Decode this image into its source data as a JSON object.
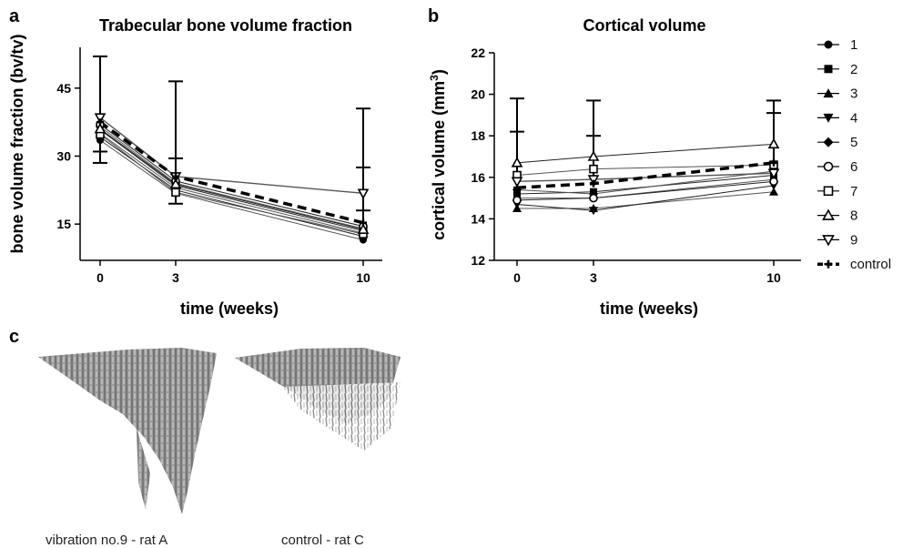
{
  "panels": {
    "a": "a",
    "b": "b",
    "c": "c"
  },
  "chart_data": [
    {
      "type": "line",
      "title": "Trabecular bone volume fraction",
      "xlabel": "time (weeks)",
      "ylabel": "bone volume fraction (bv/tv)",
      "x": [
        0,
        3,
        10
      ],
      "xticks": [
        "0",
        "3",
        "10"
      ],
      "yticks": [
        "15",
        "30",
        "45"
      ],
      "ylim": [
        7,
        54
      ],
      "series": [
        {
          "name": "1",
          "values": [
            33.5,
            21.8,
            11.5
          ]
        },
        {
          "name": "2",
          "values": [
            34.2,
            22.5,
            12.3
          ]
        },
        {
          "name": "3",
          "values": [
            35.0,
            23.0,
            13.0
          ]
        },
        {
          "name": "4",
          "values": [
            35.8,
            23.5,
            13.5
          ]
        },
        {
          "name": "5",
          "values": [
            36.5,
            24.0,
            14.0
          ]
        },
        {
          "name": "6",
          "values": [
            37.0,
            24.5,
            14.5
          ]
        },
        {
          "name": "7",
          "values": [
            34.8,
            22.0,
            12.8
          ]
        },
        {
          "name": "8",
          "values": [
            36.0,
            23.8,
            13.8
          ]
        },
        {
          "name": "9",
          "values": [
            38.5,
            25.5,
            21.8
          ]
        },
        {
          "name": "control",
          "values": [
            37.5,
            25.5,
            15.3
          ]
        }
      ],
      "error_tops": [
        [
          52,
          46.5,
          40.5
        ],
        [
          31,
          29.5,
          27.5
        ],
        [
          28.5,
          19.5,
          18
        ]
      ]
    },
    {
      "type": "line",
      "title": "Cortical volume",
      "xlabel": "time (weeks)",
      "ylabel": "cortical volume (mm",
      "ylabel_sup": "3",
      "ylabel_end": ")",
      "x": [
        0,
        3,
        10
      ],
      "xticks": [
        "0",
        "3",
        "10"
      ],
      "yticks": [
        "12",
        "14",
        "16",
        "18",
        "20",
        "22"
      ],
      "ylim": [
        12,
        22
      ],
      "series": [
        {
          "name": "1",
          "values": [
            15.0,
            15.0,
            15.9
          ]
        },
        {
          "name": "2",
          "values": [
            15.2,
            15.3,
            16.1
          ]
        },
        {
          "name": "3",
          "values": [
            14.5,
            14.5,
            15.3
          ]
        },
        {
          "name": "4",
          "values": [
            14.7,
            14.4,
            15.6
          ]
        },
        {
          "name": "5",
          "values": [
            15.4,
            15.2,
            16.3
          ]
        },
        {
          "name": "6",
          "values": [
            14.9,
            15.0,
            15.8
          ]
        },
        {
          "name": "7",
          "values": [
            16.1,
            16.4,
            16.6
          ]
        },
        {
          "name": "8",
          "values": [
            16.7,
            17.0,
            17.6
          ]
        },
        {
          "name": "9",
          "values": [
            15.8,
            15.9,
            16.2
          ]
        },
        {
          "name": "control",
          "values": [
            15.5,
            15.7,
            16.7
          ]
        }
      ],
      "error_tops": [
        [
          19.8,
          19.7,
          19.7
        ],
        [
          18.2,
          18.0,
          19.1
        ]
      ],
      "legend_position": "right"
    }
  ],
  "captions": {
    "left": "vibration no.9 - rat A",
    "right": "control - rat C"
  }
}
